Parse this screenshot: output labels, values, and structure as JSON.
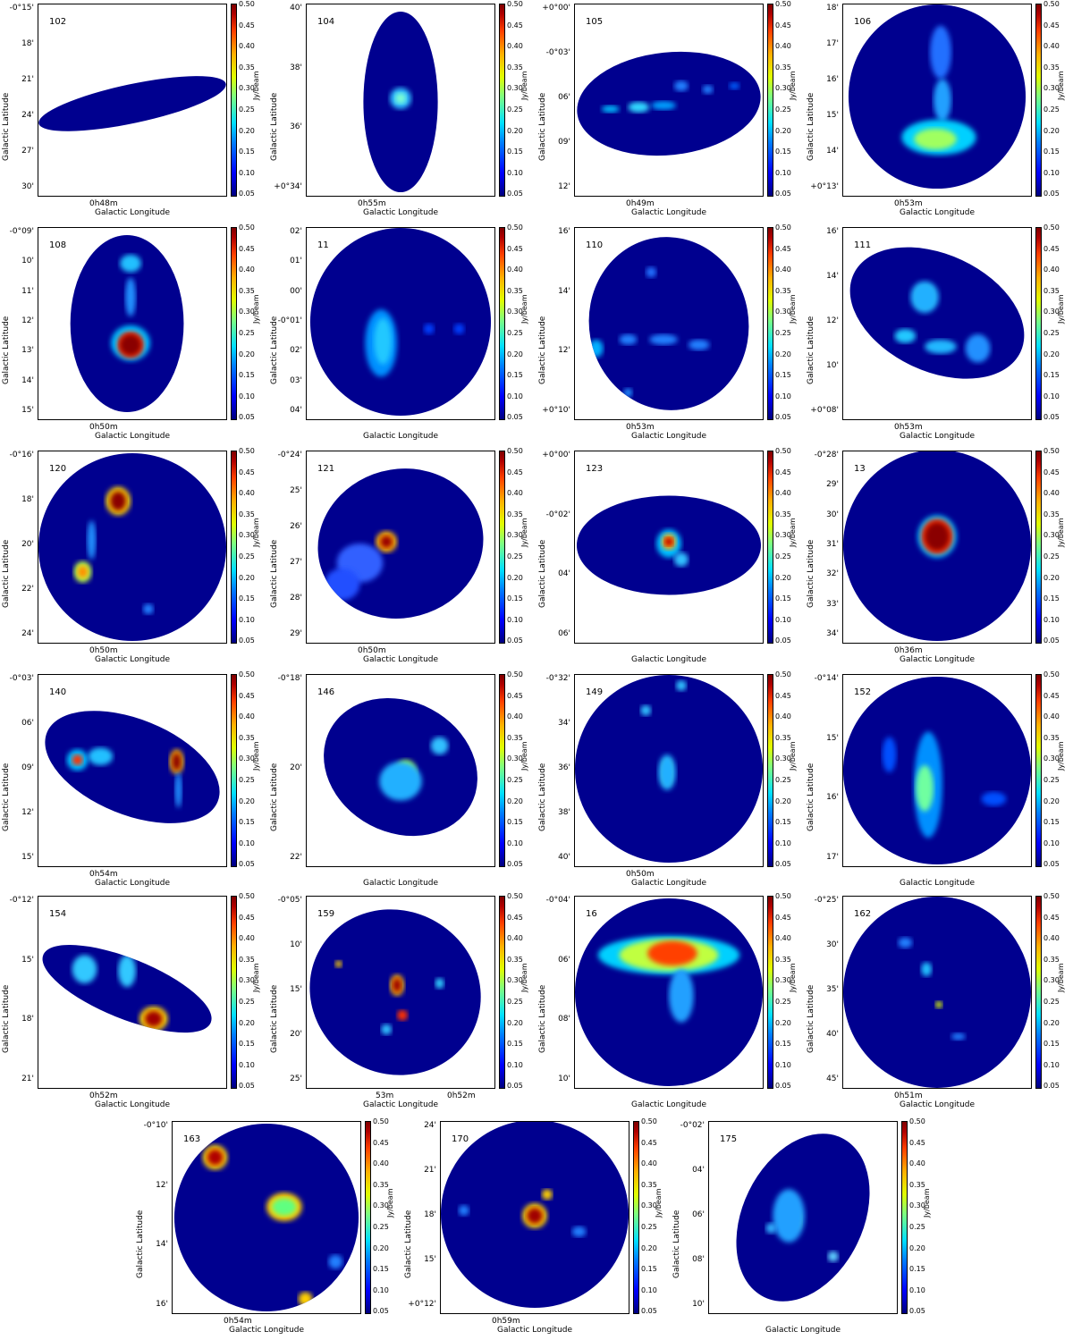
{
  "common": {
    "xlabel": "Galactic Longitude",
    "ylabel": "Galactic Latitude",
    "cbar_unit": "Jy/beam",
    "cbar_ticks": [
      "0.50",
      "0.45",
      "0.40",
      "0.35",
      "0.30",
      "0.25",
      "0.20",
      "0.15",
      "0.10",
      "0.05"
    ]
  },
  "panels": [
    {
      "id": "102",
      "yticks": [
        "-0°15'",
        "18'",
        "21'",
        "24'",
        "27'",
        "30'"
      ],
      "xticks": [
        "0h48m"
      ]
    },
    {
      "id": "104",
      "yticks": [
        "40'",
        "38'",
        "36'",
        "+0°34'"
      ],
      "xticks": [
        "0h55m"
      ]
    },
    {
      "id": "105",
      "yticks": [
        "+0°00'",
        "-0°03'",
        "06'",
        "09'",
        "12'"
      ],
      "xticks": [
        "0h49m"
      ]
    },
    {
      "id": "106",
      "yticks": [
        "18'",
        "17'",
        "16'",
        "15'",
        "14'",
        "+0°13'"
      ],
      "xticks": [
        "0h53m"
      ]
    },
    {
      "id": "108",
      "yticks": [
        "-0°09'",
        "10'",
        "11'",
        "12'",
        "13'",
        "14'",
        "15'"
      ],
      "xticks": [
        "0h50m"
      ]
    },
    {
      "id": "11",
      "yticks": [
        "02'",
        "01'",
        "00'",
        "-0°01'",
        "02'",
        "03'",
        "04'"
      ],
      "xticks": []
    },
    {
      "id": "110",
      "yticks": [
        "16'",
        "14'",
        "12'",
        "+0°10'"
      ],
      "xticks": [
        "0h53m"
      ]
    },
    {
      "id": "111",
      "yticks": [
        "16'",
        "14'",
        "12'",
        "10'",
        "+0°08'"
      ],
      "xticks": [
        "0h53m"
      ]
    },
    {
      "id": "120",
      "yticks": [
        "-0°16'",
        "18'",
        "20'",
        "22'",
        "24'"
      ],
      "xticks": [
        "0h50m"
      ]
    },
    {
      "id": "121",
      "yticks": [
        "-0°24'",
        "25'",
        "26'",
        "27'",
        "28'",
        "29'"
      ],
      "xticks": [
        "0h50m"
      ]
    },
    {
      "id": "123",
      "yticks": [
        "+0°00'",
        "-0°02'",
        "04'",
        "06'"
      ],
      "xticks": []
    },
    {
      "id": "13",
      "yticks": [
        "-0°28'",
        "29'",
        "30'",
        "31'",
        "32'",
        "33'",
        "34'"
      ],
      "xticks": [
        "0h36m"
      ]
    },
    {
      "id": "140",
      "yticks": [
        "-0°03'",
        "06'",
        "09'",
        "12'",
        "15'"
      ],
      "xticks": [
        "0h54m"
      ]
    },
    {
      "id": "146",
      "yticks": [
        "-0°18'",
        "20'",
        "22'"
      ],
      "xticks": []
    },
    {
      "id": "149",
      "yticks": [
        "-0°32'",
        "34'",
        "36'",
        "38'",
        "40'"
      ],
      "xticks": [
        "0h50m"
      ]
    },
    {
      "id": "152",
      "yticks": [
        "-0°14'",
        "15'",
        "16'",
        "17'"
      ],
      "xticks": []
    },
    {
      "id": "154",
      "yticks": [
        "-0°12'",
        "15'",
        "18'",
        "21'"
      ],
      "xticks": [
        "0h52m"
      ]
    },
    {
      "id": "159",
      "yticks": [
        "-0°05'",
        "10'",
        "15'",
        "20'",
        "25'"
      ],
      "xticks": [
        "53m",
        "0h52m"
      ]
    },
    {
      "id": "16",
      "yticks": [
        "-0°04'",
        "06'",
        "08'",
        "10'"
      ],
      "xticks": []
    },
    {
      "id": "162",
      "yticks": [
        "-0°25'",
        "30'",
        "35'",
        "40'",
        "45'"
      ],
      "xticks": [
        "0h51m"
      ]
    },
    {
      "id": "163",
      "yticks": [
        "-0°10'",
        "12'",
        "14'",
        "16'"
      ],
      "xticks": [
        "0h54m"
      ]
    },
    {
      "id": "170",
      "yticks": [
        "24'",
        "21'",
        "18'",
        "15'",
        "+0°12'"
      ],
      "xticks": [
        "0h59m"
      ]
    },
    {
      "id": "175",
      "yticks": [
        "-0°02'",
        "04'",
        "06'",
        "08'",
        "10'"
      ],
      "xticks": []
    }
  ]
}
